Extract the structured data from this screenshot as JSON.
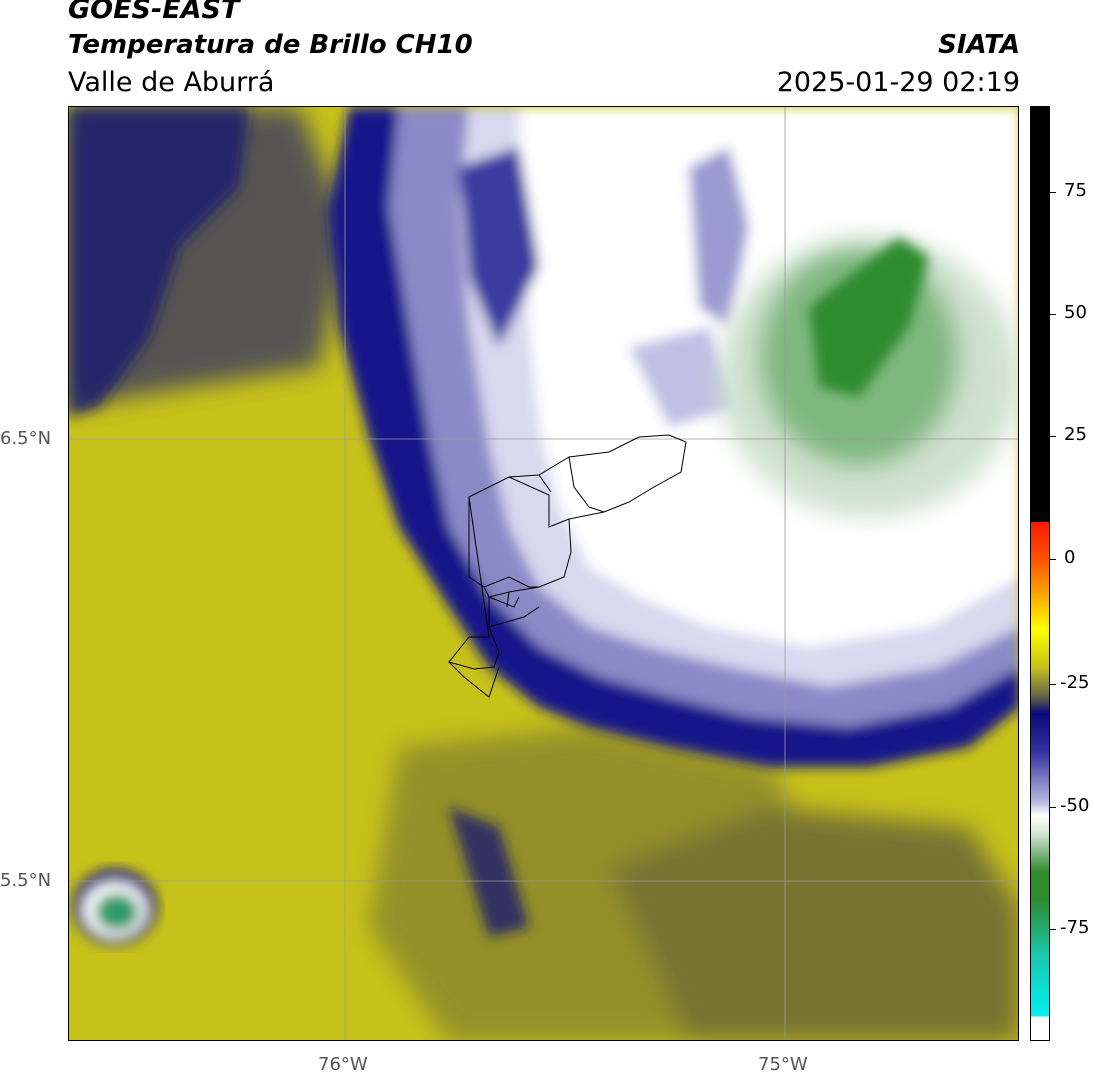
{
  "header": {
    "satellite": "GOES-EAST",
    "product": "Temperatura de Brillo CH10",
    "region": "Valle de Aburrá",
    "brand": "SIATA",
    "datetime": "2025-01-29 02:19"
  },
  "map": {
    "lat_labels": [
      "6.5°N",
      "5.5°N"
    ],
    "lon_labels": [
      "76°W",
      "75°W"
    ],
    "gridlines": true
  },
  "colorbar": {
    "ticks": [
      "75",
      "50",
      "25",
      "0",
      "-25",
      "-50",
      "-75"
    ],
    "colors": {
      "black": "#000000",
      "red": "#ff1a00",
      "orange": "#ff8a00",
      "yellow": "#ffff00",
      "olive": "#c7c21a",
      "navy": "#0a0a7a",
      "lavender": "#b8b8e0",
      "white": "#ffffff",
      "green": "#2e8b2e",
      "teal": "#19c9b0",
      "cyan": "#00f0f0"
    }
  }
}
